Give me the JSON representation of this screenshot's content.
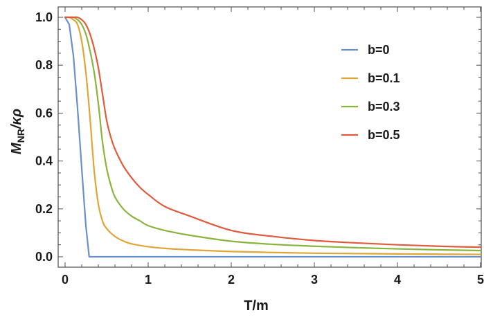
{
  "chart_data": {
    "type": "line",
    "title": "",
    "xlabel": "T/m",
    "ylabel": "M_NR/κρ",
    "ylabel_parts": {
      "main": "M",
      "sub": "NR",
      "rest": "/κρ"
    },
    "xlim": [
      0,
      5
    ],
    "ylim": [
      0,
      1.0
    ],
    "xticks": [
      0,
      1,
      2,
      3,
      4,
      5
    ],
    "xtick_labels": [
      "0",
      "1",
      "2",
      "3",
      "4",
      "5"
    ],
    "yticks": [
      0.0,
      0.2,
      0.4,
      0.6,
      0.8,
      1.0
    ],
    "ytick_labels": [
      "0.0",
      "0.2",
      "0.4",
      "0.6",
      "0.8",
      "1.0"
    ],
    "grid": false,
    "legend_position": "top-right",
    "series": [
      {
        "name": "b=0",
        "color": "#6b8fc9",
        "x": [
          0,
          0.05,
          0.1,
          0.15,
          0.2,
          0.25,
          0.29,
          0.3,
          1,
          2,
          3,
          4,
          5
        ],
        "y": [
          1.0,
          0.97,
          0.84,
          0.62,
          0.37,
          0.13,
          0.0,
          0.0,
          0.0,
          0.0,
          0.0,
          0.0,
          0.0
        ]
      },
      {
        "name": "b=0.1",
        "color": "#e1a535",
        "x": [
          0,
          0.05,
          0.1,
          0.15,
          0.2,
          0.25,
          0.3,
          0.35,
          0.4,
          0.45,
          0.5,
          0.6,
          0.7,
          0.8,
          1.0,
          1.2,
          1.5,
          2,
          2.5,
          3,
          4,
          5
        ],
        "y": [
          1.0,
          1.0,
          0.99,
          0.97,
          0.9,
          0.77,
          0.58,
          0.36,
          0.22,
          0.15,
          0.118,
          0.085,
          0.066,
          0.054,
          0.042,
          0.035,
          0.029,
          0.022,
          0.018,
          0.015,
          0.012,
          0.01
        ]
      },
      {
        "name": "b=0.3",
        "color": "#8ab43c",
        "x": [
          0,
          0.05,
          0.1,
          0.15,
          0.2,
          0.25,
          0.3,
          0.35,
          0.4,
          0.45,
          0.5,
          0.55,
          0.6,
          0.7,
          0.8,
          0.9,
          1.0,
          1.2,
          1.5,
          2,
          2.5,
          3,
          3.5,
          4,
          4.5,
          5
        ],
        "y": [
          1.0,
          1.0,
          1.0,
          0.99,
          0.97,
          0.93,
          0.86,
          0.77,
          0.64,
          0.48,
          0.37,
          0.3,
          0.25,
          0.2,
          0.17,
          0.15,
          0.13,
          0.11,
          0.09,
          0.065,
          0.052,
          0.044,
          0.038,
          0.033,
          0.029,
          0.026
        ]
      },
      {
        "name": "b=0.5",
        "color": "#e05a3e",
        "x": [
          0,
          0.05,
          0.1,
          0.15,
          0.2,
          0.25,
          0.3,
          0.35,
          0.4,
          0.45,
          0.5,
          0.55,
          0.6,
          0.7,
          0.8,
          0.9,
          1.0,
          1.2,
          1.5,
          2,
          2.5,
          3,
          3.5,
          4,
          4.5,
          5
        ],
        "y": [
          1.0,
          1.0,
          1.0,
          1.0,
          0.99,
          0.97,
          0.93,
          0.87,
          0.79,
          0.68,
          0.57,
          0.5,
          0.45,
          0.38,
          0.33,
          0.29,
          0.26,
          0.21,
          0.17,
          0.11,
          0.085,
          0.068,
          0.058,
          0.05,
          0.044,
          0.04
        ]
      }
    ]
  }
}
